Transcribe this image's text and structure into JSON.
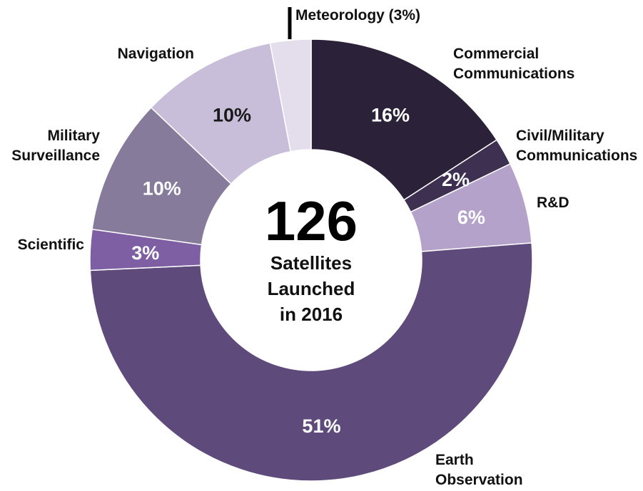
{
  "chart_data": {
    "type": "pie",
    "donut": true,
    "center_text": {
      "value": "126",
      "lines": [
        "Satellites",
        "Launched",
        "in 2016"
      ]
    },
    "slices": [
      {
        "category": "Commercial Communications",
        "label_lines": [
          "Commercial",
          "Communications"
        ],
        "percent_label": "16%",
        "value": 16,
        "color": "#2b2138",
        "text_color": "#ffffff"
      },
      {
        "category": "Civil/Military Communications",
        "label_lines": [
          "Civil/Military",
          "Communications"
        ],
        "percent_label": "2%",
        "value": 2,
        "color": "#3d3050",
        "text_color": "#ffffff"
      },
      {
        "category": "R&D",
        "label_lines": [
          "R&D"
        ],
        "percent_label": "6%",
        "value": 6,
        "color": "#b5a2ca",
        "text_color": "#ffffff"
      },
      {
        "category": "Earth Observation",
        "label_lines": [
          "Earth",
          "Observation"
        ],
        "percent_label": "51%",
        "value": 51,
        "color": "#5f4a7c",
        "text_color": "#ffffff"
      },
      {
        "category": "Scientific",
        "label_lines": [
          "Scientific"
        ],
        "percent_label": "3%",
        "value": 3,
        "color": "#7e5fa3",
        "text_color": "#ffffff"
      },
      {
        "category": "Military Surveillance",
        "label_lines": [
          "Military",
          "Surveillance"
        ],
        "percent_label": "10%",
        "value": 10,
        "color": "#877b9b",
        "text_color": "#ffffff"
      },
      {
        "category": "Navigation",
        "label_lines": [
          "Navigation"
        ],
        "percent_label": "10%",
        "value": 10,
        "color": "#c8bed9",
        "text_color": "#1a1a1a"
      },
      {
        "category": "Meteorology",
        "label_lines": [
          "Meteorology (3%)"
        ],
        "percent_label": "",
        "value": 3,
        "color": "#e4ddec",
        "text_color": "#1a1a1a"
      }
    ]
  }
}
